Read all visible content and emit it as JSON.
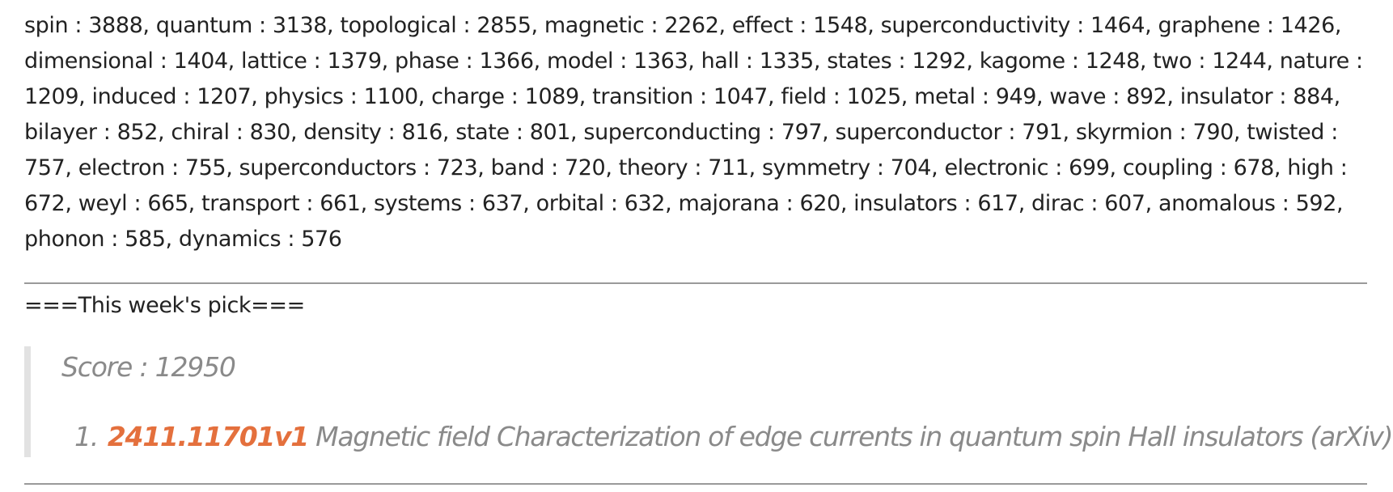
{
  "keywords_text": "spin : 3888, quantum : 3138, topological : 2855, magnetic : 2262, effect : 1548, superconductivity : 1464, graphene : 1426, dimensional : 1404, lattice : 1379, phase : 1366, model : 1363, hall : 1335, states : 1292, kagome : 1248, two : 1244, nature : 1209, induced : 1207, physics : 1100, charge : 1089, transition : 1047, field : 1025, metal : 949, wave : 892, insulator : 884, bilayer : 852, chiral : 830, density : 816, state : 801, superconducting : 797, superconductor : 791, skyrmion : 790, twisted : 757, electron : 755, superconductors : 723, band : 720, theory : 711, symmetry : 704, electronic : 699, coupling : 678, high : 672, weyl : 665, transport : 661, systems : 637, orbital : 632, majorana : 620, insulators : 617, dirac : 607, anomalous : 592, phonon : 585, dynamics : 576",
  "pick": {
    "header": "===This week's pick===",
    "score": "Score : 12950",
    "item_number": "1.",
    "item_id": "2411.11701v1",
    "item_title": "Magnetic field Characterization of edge currents in quantum spin Hall insulators (arXiv)"
  }
}
